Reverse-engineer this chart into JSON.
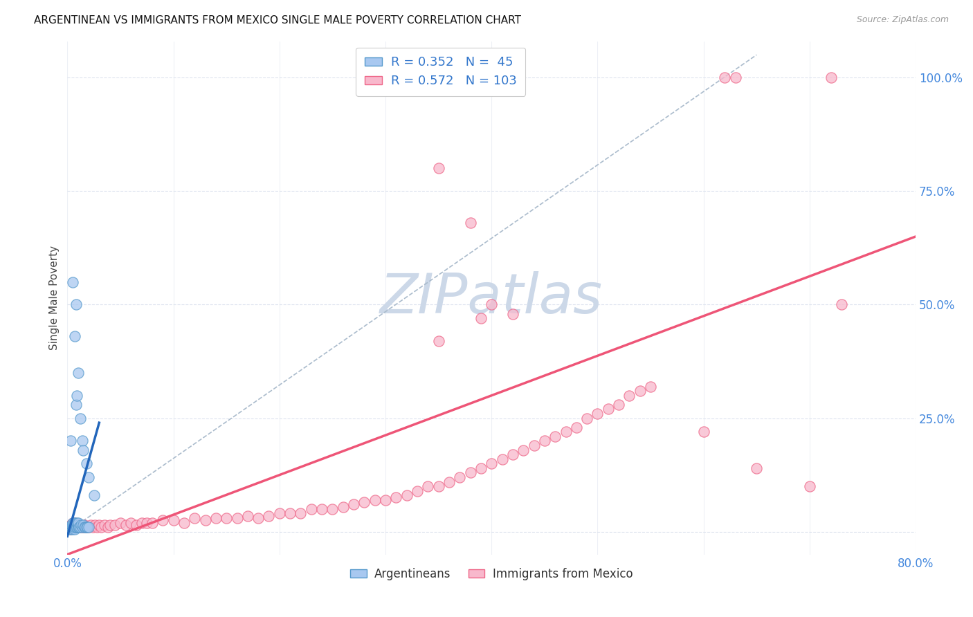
{
  "title": "ARGENTINEAN VS IMMIGRANTS FROM MEXICO SINGLE MALE POVERTY CORRELATION CHART",
  "source": "Source: ZipAtlas.com",
  "ylabel": "Single Male Poverty",
  "x_min": 0.0,
  "x_max": 0.8,
  "y_min": -0.05,
  "y_max": 1.08,
  "x_ticks": [
    0.0,
    0.1,
    0.2,
    0.3,
    0.4,
    0.5,
    0.6,
    0.7,
    0.8
  ],
  "x_tick_labels_show": [
    "0.0%",
    "80.0%"
  ],
  "y_ticks": [
    0.0,
    0.25,
    0.5,
    0.75,
    1.0
  ],
  "y_tick_labels": [
    "",
    "25.0%",
    "50.0%",
    "75.0%",
    "100.0%"
  ],
  "color_arg": "#a8c8f0",
  "color_mex": "#f8b8cc",
  "edge_color_arg": "#5599cc",
  "edge_color_mex": "#ee6688",
  "line_color_arg": "#2266bb",
  "line_color_mex": "#ee5577",
  "diag_color": "#aabbcc",
  "watermark": "ZIPatlas",
  "watermark_color": "#ccd8e8",
  "background_color": "#ffffff",
  "grid_color": "#dde3ee",
  "arg_scatter": [
    [
      0.002,
      0.005
    ],
    [
      0.003,
      0.01
    ],
    [
      0.003,
      0.005
    ],
    [
      0.004,
      0.01
    ],
    [
      0.004,
      0.015
    ],
    [
      0.005,
      0.005
    ],
    [
      0.005,
      0.01
    ],
    [
      0.005,
      0.015
    ],
    [
      0.005,
      0.02
    ],
    [
      0.006,
      0.01
    ],
    [
      0.006,
      0.015
    ],
    [
      0.006,
      0.02
    ],
    [
      0.007,
      0.005
    ],
    [
      0.007,
      0.01
    ],
    [
      0.007,
      0.02
    ],
    [
      0.008,
      0.01
    ],
    [
      0.008,
      0.015
    ],
    [
      0.009,
      0.01
    ],
    [
      0.009,
      0.02
    ],
    [
      0.01,
      0.01
    ],
    [
      0.01,
      0.015
    ],
    [
      0.01,
      0.02
    ],
    [
      0.011,
      0.01
    ],
    [
      0.012,
      0.01
    ],
    [
      0.013,
      0.015
    ],
    [
      0.014,
      0.01
    ],
    [
      0.015,
      0.015
    ],
    [
      0.016,
      0.01
    ],
    [
      0.017,
      0.01
    ],
    [
      0.018,
      0.01
    ],
    [
      0.019,
      0.01
    ],
    [
      0.02,
      0.01
    ],
    [
      0.005,
      0.55
    ],
    [
      0.007,
      0.43
    ],
    [
      0.008,
      0.5
    ],
    [
      0.008,
      0.28
    ],
    [
      0.009,
      0.3
    ],
    [
      0.01,
      0.35
    ],
    [
      0.012,
      0.25
    ],
    [
      0.014,
      0.2
    ],
    [
      0.015,
      0.18
    ],
    [
      0.018,
      0.15
    ],
    [
      0.02,
      0.12
    ],
    [
      0.025,
      0.08
    ],
    [
      0.003,
      0.2
    ]
  ],
  "mex_scatter": [
    [
      0.002,
      0.01
    ],
    [
      0.003,
      0.005
    ],
    [
      0.003,
      0.01
    ],
    [
      0.003,
      0.015
    ],
    [
      0.004,
      0.01
    ],
    [
      0.004,
      0.015
    ],
    [
      0.005,
      0.01
    ],
    [
      0.005,
      0.015
    ],
    [
      0.005,
      0.02
    ],
    [
      0.006,
      0.01
    ],
    [
      0.006,
      0.015
    ],
    [
      0.006,
      0.02
    ],
    [
      0.007,
      0.01
    ],
    [
      0.007,
      0.015
    ],
    [
      0.007,
      0.02
    ],
    [
      0.008,
      0.01
    ],
    [
      0.008,
      0.015
    ],
    [
      0.009,
      0.01
    ],
    [
      0.009,
      0.015
    ],
    [
      0.01,
      0.01
    ],
    [
      0.01,
      0.015
    ],
    [
      0.011,
      0.01
    ],
    [
      0.012,
      0.01
    ],
    [
      0.013,
      0.015
    ],
    [
      0.014,
      0.01
    ],
    [
      0.015,
      0.01
    ],
    [
      0.016,
      0.015
    ],
    [
      0.017,
      0.01
    ],
    [
      0.018,
      0.01
    ],
    [
      0.019,
      0.01
    ],
    [
      0.02,
      0.01
    ],
    [
      0.022,
      0.015
    ],
    [
      0.024,
      0.01
    ],
    [
      0.026,
      0.015
    ],
    [
      0.028,
      0.01
    ],
    [
      0.03,
      0.015
    ],
    [
      0.032,
      0.01
    ],
    [
      0.035,
      0.015
    ],
    [
      0.038,
      0.01
    ],
    [
      0.04,
      0.015
    ],
    [
      0.045,
      0.015
    ],
    [
      0.05,
      0.02
    ],
    [
      0.055,
      0.015
    ],
    [
      0.06,
      0.02
    ],
    [
      0.065,
      0.015
    ],
    [
      0.07,
      0.02
    ],
    [
      0.075,
      0.02
    ],
    [
      0.08,
      0.02
    ],
    [
      0.09,
      0.025
    ],
    [
      0.1,
      0.025
    ],
    [
      0.11,
      0.02
    ],
    [
      0.12,
      0.03
    ],
    [
      0.13,
      0.025
    ],
    [
      0.14,
      0.03
    ],
    [
      0.15,
      0.03
    ],
    [
      0.16,
      0.03
    ],
    [
      0.17,
      0.035
    ],
    [
      0.18,
      0.03
    ],
    [
      0.19,
      0.035
    ],
    [
      0.2,
      0.04
    ],
    [
      0.21,
      0.04
    ],
    [
      0.22,
      0.04
    ],
    [
      0.23,
      0.05
    ],
    [
      0.24,
      0.05
    ],
    [
      0.25,
      0.05
    ],
    [
      0.26,
      0.055
    ],
    [
      0.27,
      0.06
    ],
    [
      0.28,
      0.065
    ],
    [
      0.29,
      0.07
    ],
    [
      0.3,
      0.07
    ],
    [
      0.31,
      0.075
    ],
    [
      0.32,
      0.08
    ],
    [
      0.33,
      0.09
    ],
    [
      0.34,
      0.1
    ],
    [
      0.35,
      0.1
    ],
    [
      0.36,
      0.11
    ],
    [
      0.37,
      0.12
    ],
    [
      0.38,
      0.13
    ],
    [
      0.39,
      0.14
    ],
    [
      0.4,
      0.15
    ],
    [
      0.41,
      0.16
    ],
    [
      0.42,
      0.17
    ],
    [
      0.43,
      0.18
    ],
    [
      0.44,
      0.19
    ],
    [
      0.45,
      0.2
    ],
    [
      0.46,
      0.21
    ],
    [
      0.47,
      0.22
    ],
    [
      0.48,
      0.23
    ],
    [
      0.49,
      0.25
    ],
    [
      0.5,
      0.26
    ],
    [
      0.51,
      0.27
    ],
    [
      0.52,
      0.28
    ],
    [
      0.53,
      0.3
    ],
    [
      0.54,
      0.31
    ],
    [
      0.55,
      0.32
    ],
    [
      0.62,
      1.0
    ],
    [
      0.63,
      1.0
    ],
    [
      0.72,
      1.0
    ],
    [
      0.73,
      0.5
    ],
    [
      0.35,
      0.8
    ],
    [
      0.38,
      0.68
    ],
    [
      0.35,
      0.42
    ],
    [
      0.39,
      0.47
    ],
    [
      0.4,
      0.5
    ],
    [
      0.42,
      0.48
    ],
    [
      0.6,
      0.22
    ],
    [
      0.65,
      0.14
    ],
    [
      0.7,
      0.1
    ]
  ],
  "arg_line": [
    [
      0.0,
      -0.01
    ],
    [
      0.03,
      0.24
    ]
  ],
  "mex_line": [
    [
      0.0,
      -0.05
    ],
    [
      0.8,
      0.65
    ]
  ],
  "diag_line": [
    [
      0.0,
      0.0
    ],
    [
      0.65,
      1.05
    ]
  ]
}
